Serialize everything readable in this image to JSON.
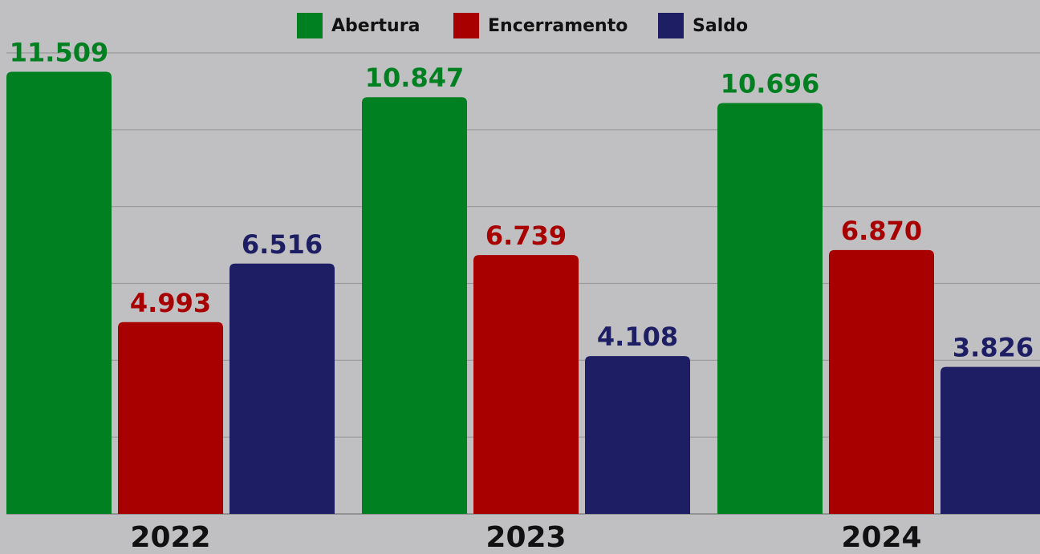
{
  "chart_data": {
    "type": "bar",
    "categories": [
      "2022",
      "2023",
      "2024"
    ],
    "series": [
      {
        "name": "Abertura",
        "color": "#008020",
        "values": [
          11509,
          10847,
          10696
        ],
        "value_labels": [
          "11.509",
          "10.847",
          "10.696"
        ]
      },
      {
        "name": "Encerramento",
        "color": "#a80000",
        "values": [
          4993,
          6739,
          6870
        ],
        "value_labels": [
          "4.993",
          "6.739",
          "6.870"
        ]
      },
      {
        "name": "Saldo",
        "color": "#1e1e64",
        "values": [
          6516,
          4108,
          3826
        ],
        "value_labels": [
          "6.516",
          "4.108",
          "3.826"
        ]
      }
    ],
    "ylim": [
      0,
      12000
    ],
    "yticks": [
      0,
      2000,
      4000,
      6000,
      8000,
      10000,
      12000
    ],
    "grid": true,
    "legend": "top"
  }
}
